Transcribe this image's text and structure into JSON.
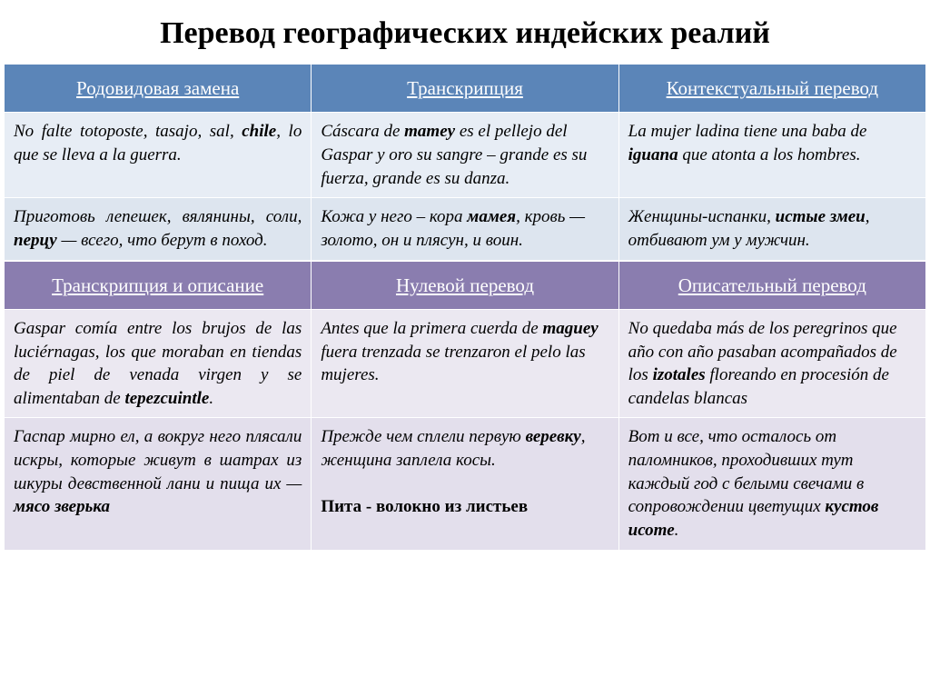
{
  "title": "Перевод географических индейских реалий",
  "colors": {
    "header_blue": "#5b85b8",
    "header_purple": "#8a7daf",
    "row_blue_a": "#e7edf5",
    "row_blue_b": "#dde5ef",
    "row_purple_a": "#ebe8f1",
    "row_purple_b": "#e3dfec",
    "title_color": "#000000",
    "header_text": "#ffffff"
  },
  "typography": {
    "title_size": 34,
    "header_size": 21,
    "cell_size": 19,
    "font_family": "Times New Roman"
  },
  "table1": {
    "headers": [
      "Родовидовая замена",
      "Транскрипция",
      "Контекстуальный перевод"
    ],
    "row1": {
      "c1_html": "No falte totoposte, tasajo, sal, <b>chile</b>, lo que se lleva a la guerra.",
      "c2_html": "Cáscara de <b>mamey</b> es el pellejo del Gaspar y oro su sangre – grande es su fuerza, grande es su danza.",
      "c3_html": "La mujer ladina tiene una baba de <b>iguana</b> que atonta a los hombres."
    },
    "row2": {
      "c1_html": "Приготовь лепешек, вялянины, соли, <b>перцу</b> — всего, что берут в поход.",
      "c2_html": "Кожа у него – кора <b>мамея</b>, кровь — золото, он и плясун, и воин.",
      "c3_html": "Женщины-испанки, <b>истые змеи</b>, отбивают ум у мужчин."
    }
  },
  "table2": {
    "headers": [
      "Транскрипция и описание",
      " Нулевой перевод",
      "Описательный перевод"
    ],
    "row1": {
      "c1_html": "Gaspar comía entre los brujos de las luciérnagas, los que moraban en tiendas de piel de venada virgen y se alimentaban de <b>tepezcuintle</b>.",
      "c2_html": "Antes que la primera cuerda de <b>maguey</b> fuera trenzada se trenzaron el pelo las mujeres.",
      "c3_html": "No quedaba más de los peregrinos que año con año pasaban acompañados de los <b>izotales</b> floreando en procesión de candelas blancas"
    },
    "row2": {
      "c1_html": "Гаспар мирно ел, а вокруг него плясали искры, которые живут в шатрах из шкуры девственной лани и пища их — <b>мясо зверька</b>",
      "c2_html": "Прежде чем сплели первую <b>веревку</b>, женщина заплела косы.<br><br><span style='font-style:normal;font-weight:bold'>Пита - волокно из листьев</span>",
      "c3_html": "Вот и все, что осталось от паломников, проходивших тут каждый год с белыми свечами в сопровождении цветущих <b>кустов исоте</b>."
    }
  }
}
